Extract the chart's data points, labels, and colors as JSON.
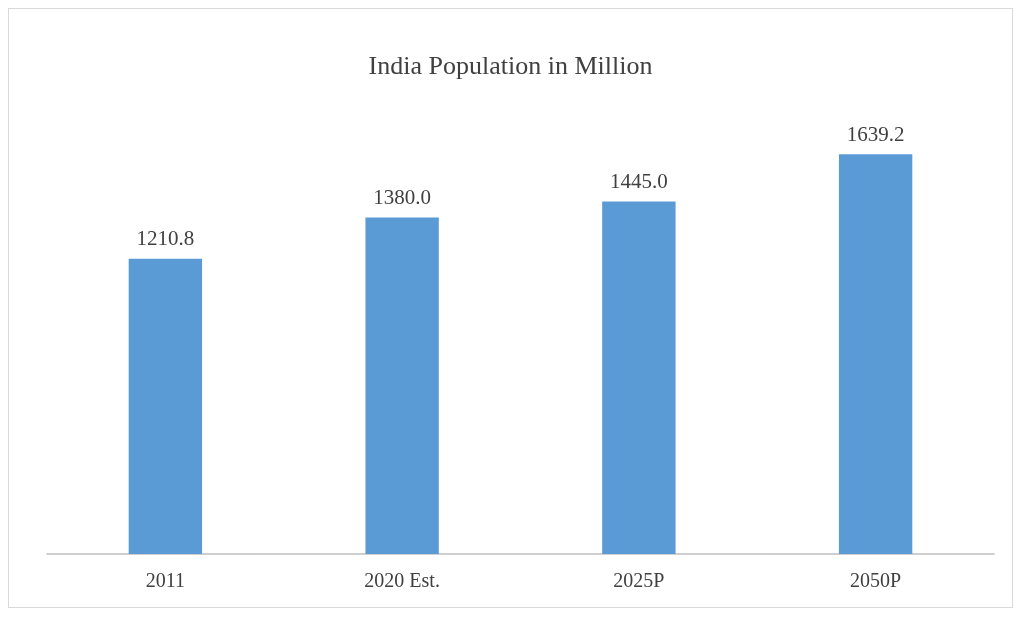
{
  "chart_data": {
    "type": "bar",
    "title": "India Population in Million",
    "categories": [
      "2011",
      "2020 Est.",
      "2025P",
      "2050P"
    ],
    "values": [
      1210.8,
      1380.0,
      1445.0,
      1639.2
    ],
    "value_labels": [
      "1210.8",
      "1380.0",
      "1445.0",
      "1639.2"
    ],
    "color": "#5b9bd5"
  }
}
